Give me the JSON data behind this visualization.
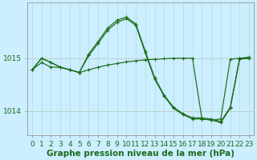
{
  "title": "Graphe pression niveau de la mer (hPa)",
  "bg_color": "#cceeff",
  "line_color": "#1a6b1a",
  "grid_color": "#aadddd",
  "tick_color": "#1a6b1a",
  "hours": [
    0,
    1,
    2,
    3,
    4,
    5,
    6,
    7,
    8,
    9,
    10,
    11,
    12,
    13,
    14,
    15,
    16,
    17,
    18,
    19,
    20,
    21,
    22,
    23
  ],
  "s1": [
    1014.78,
    1015.0,
    1014.92,
    1014.83,
    1014.78,
    1014.73,
    1015.05,
    1015.28,
    1015.53,
    1015.68,
    1015.75,
    1015.62,
    1015.1,
    1014.6,
    1014.28,
    1014.05,
    1013.93,
    1013.85,
    1013.85,
    1013.83,
    1013.78,
    1014.05,
    1014.98,
    1015.0
  ],
  "s2": [
    1014.78,
    1014.92,
    1014.83,
    1014.83,
    1014.78,
    1014.73,
    1014.78,
    1014.83,
    1014.87,
    1014.9,
    1014.93,
    1014.95,
    1014.97,
    1014.98,
    1014.99,
    1015.0,
    1015.0,
    1015.0,
    1013.85,
    1013.83,
    1013.85,
    1014.98,
    1015.0,
    1015.0
  ],
  "s3": [
    1014.78,
    1015.0,
    1014.92,
    1014.83,
    1014.78,
    1014.73,
    1015.08,
    1015.32,
    1015.57,
    1015.72,
    1015.78,
    1015.65,
    1015.13,
    1014.63,
    1014.3,
    1014.07,
    1013.95,
    1013.87,
    1013.87,
    1013.85,
    1013.8,
    1014.07,
    1015.0,
    1015.02
  ],
  "ylim": [
    1013.55,
    1016.05
  ],
  "yticks": [
    1014,
    1015
  ],
  "xticks": [
    0,
    1,
    2,
    3,
    4,
    5,
    6,
    7,
    8,
    9,
    10,
    11,
    12,
    13,
    14,
    15,
    16,
    17,
    18,
    19,
    20,
    21,
    22,
    23
  ],
  "title_fontsize": 7.5,
  "tick_fontsize": 6.5
}
